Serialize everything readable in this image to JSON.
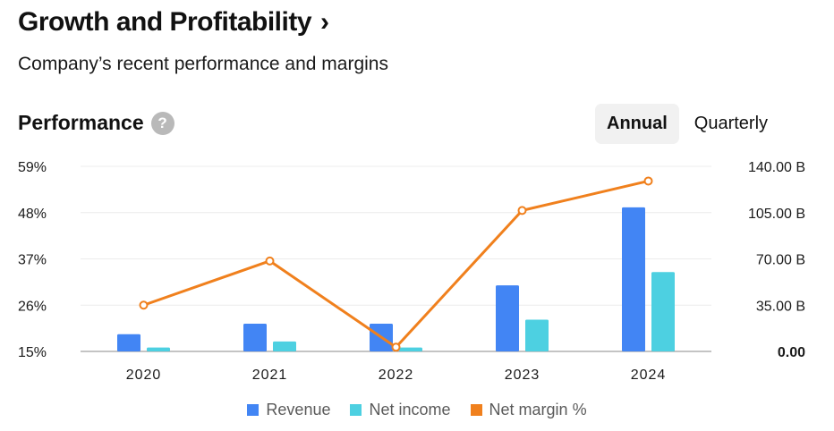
{
  "header": {
    "title": "Growth and Profitability",
    "chevron": "›",
    "subtitle": "Company’s recent performance and margins"
  },
  "section": {
    "title": "Performance",
    "help_icon": "?"
  },
  "tabs": [
    {
      "label": "Annual",
      "active": true
    },
    {
      "label": "Quarterly",
      "active": false
    }
  ],
  "colors": {
    "revenue": "#4285f4",
    "net_income": "#4dd0e1",
    "net_margin": "#f0801d"
  },
  "chart_data": {
    "type": "bar",
    "categories": [
      "2020",
      "2021",
      "2022",
      "2023",
      "2024"
    ],
    "series": [
      {
        "name": "Revenue",
        "type": "bar",
        "axis": "right",
        "values": [
          13,
          21,
          21,
          50,
          109
        ]
      },
      {
        "name": "Net income",
        "type": "bar",
        "axis": "right",
        "values": [
          3,
          7.5,
          3,
          24,
          60
        ]
      },
      {
        "name": "Net margin %",
        "type": "line",
        "axis": "left",
        "values": [
          26,
          36.5,
          16,
          48.5,
          55.5
        ]
      }
    ],
    "left_axis": {
      "ticks": [
        "59%",
        "48%",
        "37%",
        "26%",
        "15%"
      ],
      "ylim": [
        15,
        59
      ]
    },
    "right_axis": {
      "ticks": [
        "140.00 B",
        "105.00 B",
        "70.00 B",
        "35.00 B",
        "0.00"
      ],
      "ylim": [
        0,
        140
      ]
    },
    "legend_position": "bottom-center",
    "grid": true
  }
}
